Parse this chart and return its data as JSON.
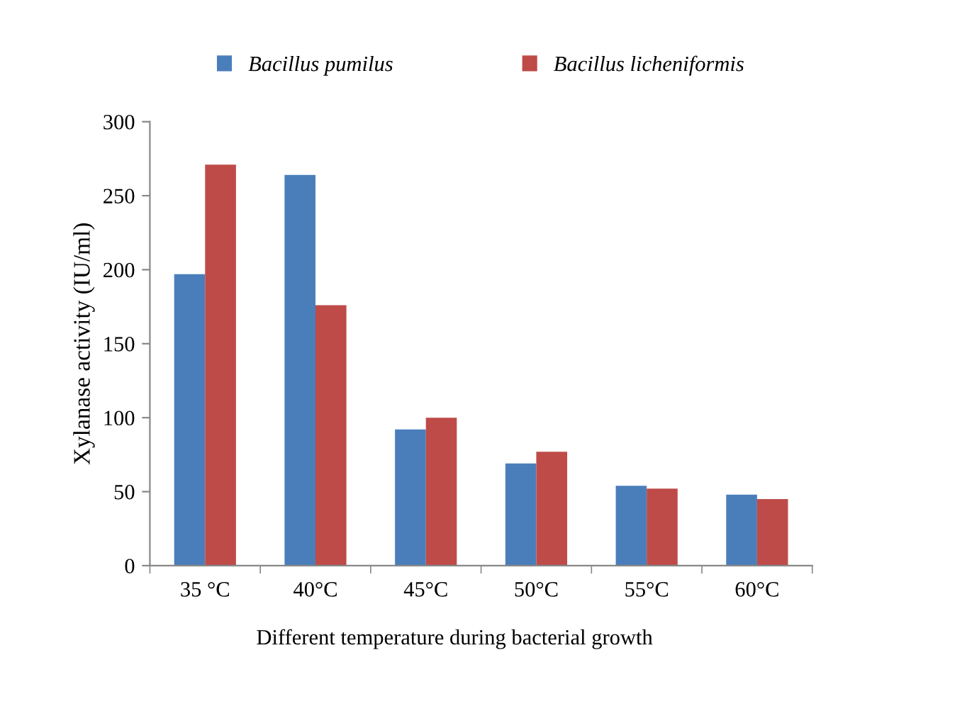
{
  "chart_data": {
    "type": "bar",
    "xlabel": "Different temperature during bacterial growth",
    "ylabel": "Xylanase activity (IU/ml)",
    "categories": [
      "35 °C",
      "40°C",
      "45°C",
      "50°C",
      "55°C",
      "60°C"
    ],
    "series": [
      {
        "name": "Bacillus pumilus",
        "color": "#4a7ebb",
        "values": [
          197,
          264,
          92,
          69,
          54,
          48
        ]
      },
      {
        "name": "Bacillus licheniformis",
        "color": "#be4b48",
        "values": [
          271,
          176,
          100,
          77,
          52,
          45
        ]
      }
    ],
    "ylim": [
      0,
      300
    ],
    "yticks": [
      0,
      50,
      100,
      150,
      200,
      250,
      300
    ],
    "grid": false,
    "legend": "top"
  }
}
